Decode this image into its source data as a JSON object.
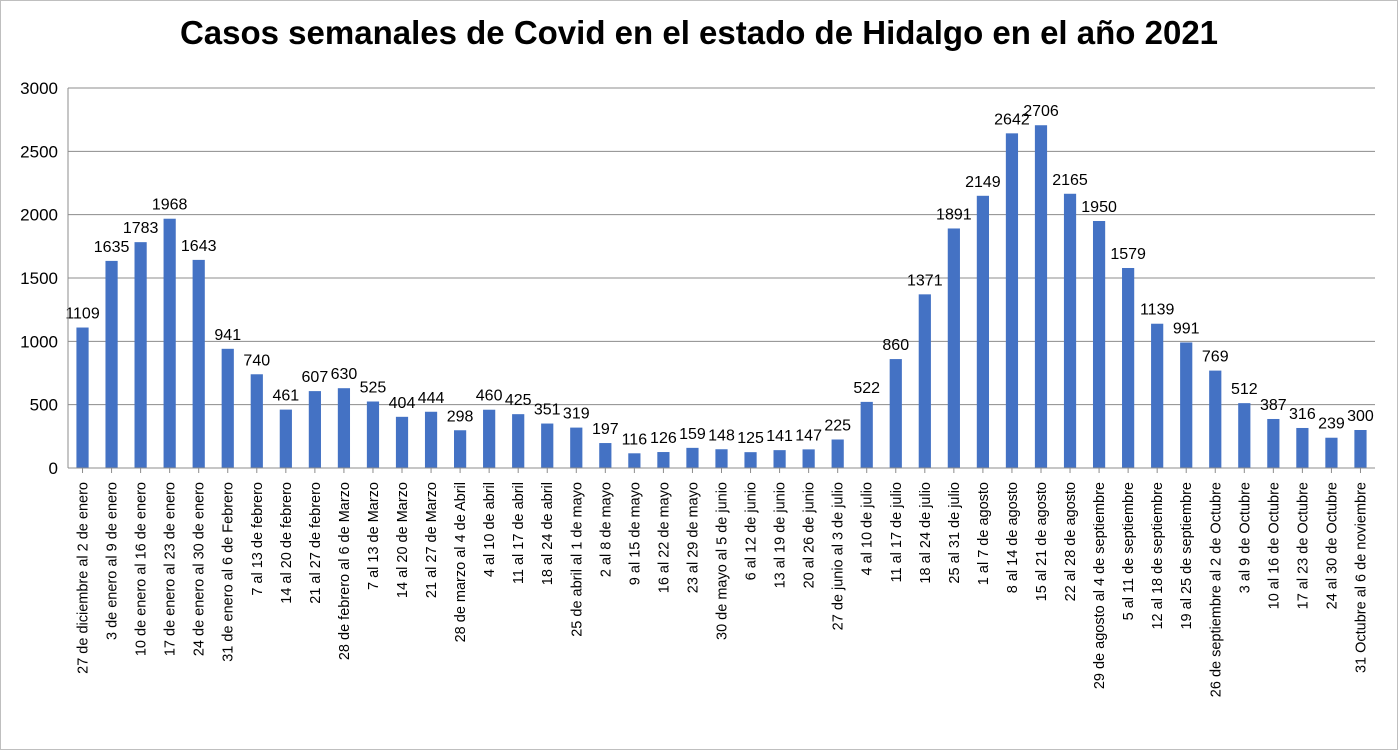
{
  "chart_data": {
    "type": "bar",
    "title": "Casos semanales de Covid en el estado de Hidalgo en el año 2021",
    "xlabel": "",
    "ylabel": "",
    "ylim": [
      0,
      3000
    ],
    "yticks": [
      "0",
      "500",
      "1000",
      "1500",
      "2000",
      "2500",
      "3000"
    ],
    "grid": true,
    "legend": "none",
    "bar_color": "#4472C4",
    "categories": [
      "27 de diciembre al 2 de enero",
      "3 de enero al 9 de enero",
      "10 de enero al 16 de enero",
      "17 de enero al 23 de enero",
      "24 de enero al 30 de enero",
      "31 de enero al 6 de Febrero",
      "7 al 13 de febrero",
      "14 al 20 de febrero",
      "21 al 27 de febrero",
      "28 de febrero al  6 de Marzo",
      "7 al 13 de Marzo",
      "14 al 20 de Marzo",
      "21 al 27 de Marzo",
      "28 de marzo al 4 de Abril",
      "4 al 10 de abril",
      "11 al 17 de abril",
      "18 al 24 de abril",
      "25 de abril al 1 de mayo",
      "2 al 8 de mayo",
      "9 al 15 de mayo",
      "16 al 22 de mayo",
      "23 al 29 de mayo",
      "30 de mayo al 5 de junio",
      "6 al 12 de junio",
      "13 al 19 de junio",
      "20 al 26 de junio",
      "27 de junio al 3 de julio",
      "4 al 10 de julio",
      "11 al 17 de julio",
      "18 al 24 de julio",
      "25 al 31 de julio",
      "1 al 7 de agosto",
      "8 al 14 de agosto",
      "15 al 21 de agosto",
      "22 al 28 de agosto",
      "29 de agosto al 4 de septiembre",
      "5 al 11 de septiembre",
      "12 al 18 de septiembre",
      "19 al 25 de septiembre",
      "26 de septiembre al 2 de Octubre",
      "3 al 9 de Octubre",
      "10 al 16 de Octubre",
      "17 al 23 de Octubre",
      "24 al 30 de Octubre",
      "31 Octubre al 6 de noviembre"
    ],
    "values": [
      1109,
      1635,
      1783,
      1968,
      1643,
      941,
      740,
      461,
      607,
      630,
      525,
      404,
      444,
      298,
      460,
      425,
      351,
      319,
      197,
      116,
      126,
      159,
      148,
      125,
      141,
      147,
      225,
      522,
      860,
      1371,
      1891,
      2149,
      2642,
      2706,
      2165,
      1950,
      1579,
      1139,
      991,
      769,
      512,
      387,
      316,
      239,
      300
    ]
  }
}
